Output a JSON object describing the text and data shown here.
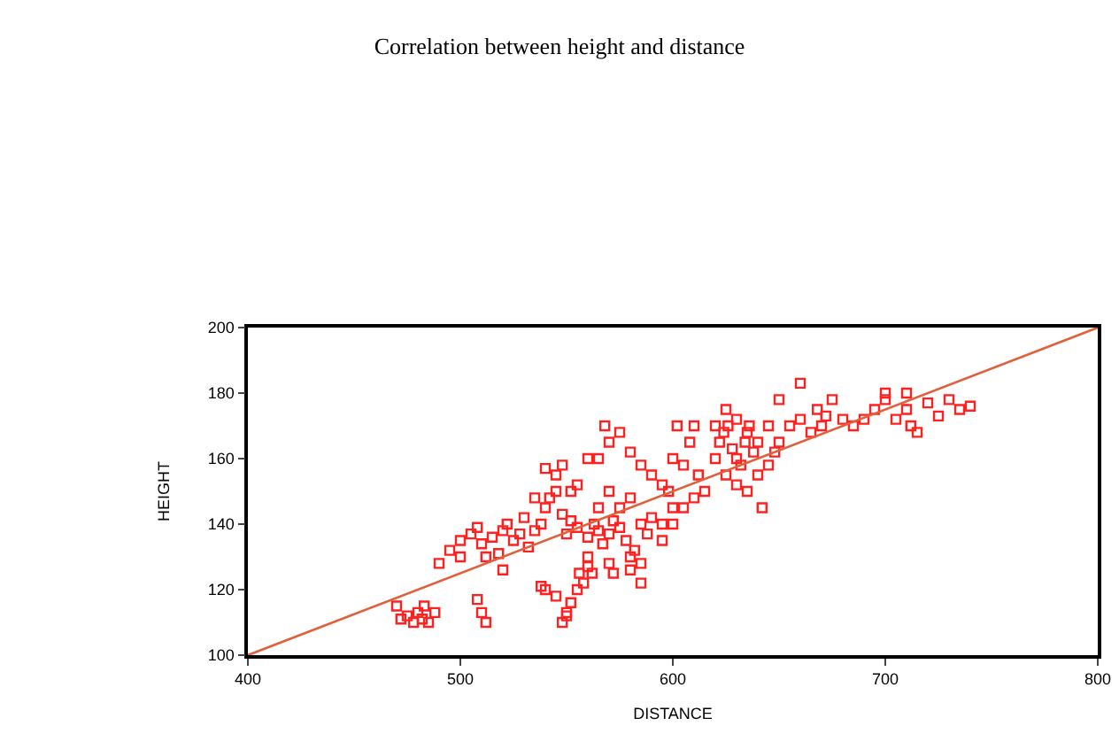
{
  "chart_data": {
    "type": "scatter",
    "title": "Correlation between height and distance",
    "xlabel": "DISTANCE",
    "ylabel": "HEIGHT",
    "xlim": [
      400,
      800
    ],
    "ylim": [
      100,
      200
    ],
    "xticks": [
      400,
      500,
      600,
      700,
      800
    ],
    "yticks": [
      100,
      120,
      140,
      160,
      180,
      200
    ],
    "grid": false,
    "marker": "square",
    "series": [
      {
        "color": "#ff2020",
        "x": [
          470,
          475,
          478,
          480,
          482,
          485,
          483,
          488,
          472,
          510,
          512,
          508,
          548,
          550,
          545,
          552,
          555,
          558,
          556,
          540,
          538,
          560,
          562,
          550,
          560,
          570,
          572,
          580,
          585,
          585,
          490,
          495,
          500,
          505,
          508,
          510,
          515,
          520,
          522,
          518,
          525,
          528,
          530,
          532,
          535,
          538,
          540,
          542,
          545,
          548,
          550,
          552,
          555,
          500,
          512,
          520,
          545,
          548,
          555,
          560,
          535,
          552,
          540,
          560,
          563,
          565,
          567,
          570,
          572,
          575,
          578,
          580,
          582,
          585,
          588,
          575,
          570,
          565,
          580,
          590,
          595,
          600,
          565,
          570,
          575,
          568,
          580,
          585,
          590,
          595,
          598,
          600,
          605,
          608,
          610,
          602,
          612,
          615,
          610,
          605,
          600,
          595,
          620,
          622,
          624,
          626,
          628,
          630,
          632,
          634,
          636,
          638,
          620,
          625,
          630,
          635,
          640,
          625,
          630,
          635,
          640,
          645,
          648,
          650,
          645,
          642,
          655,
          660,
          665,
          668,
          670,
          672,
          660,
          675,
          680,
          685,
          690,
          695,
          700,
          705,
          710,
          712,
          715,
          720,
          725,
          730,
          735,
          740,
          710,
          700,
          650
        ],
        "values": [
          115,
          112,
          110,
          113,
          111,
          110,
          115,
          113,
          111,
          113,
          110,
          117,
          110,
          113,
          118,
          116,
          120,
          122,
          125,
          120,
          121,
          127,
          125,
          112,
          130,
          128,
          125,
          126,
          128,
          122,
          128,
          132,
          135,
          137,
          139,
          134,
          136,
          138,
          140,
          131,
          135,
          137,
          142,
          133,
          138,
          140,
          145,
          148,
          150,
          143,
          137,
          141,
          139,
          130,
          130,
          126,
          155,
          158,
          152,
          160,
          148,
          150,
          157,
          136,
          140,
          138,
          134,
          137,
          141,
          139,
          135,
          130,
          132,
          140,
          137,
          145,
          150,
          145,
          148,
          142,
          140,
          145,
          160,
          165,
          168,
          170,
          162,
          158,
          155,
          152,
          150,
          160,
          158,
          165,
          170,
          170,
          155,
          150,
          148,
          145,
          140,
          135,
          160,
          165,
          168,
          170,
          163,
          160,
          158,
          165,
          170,
          162,
          170,
          175,
          172,
          168,
          165,
          155,
          152,
          150,
          155,
          158,
          162,
          165,
          170,
          145,
          170,
          172,
          168,
          175,
          170,
          173,
          183,
          178,
          172,
          170,
          172,
          175,
          178,
          172,
          175,
          170,
          168,
          177,
          173,
          178,
          175,
          176,
          180,
          180,
          178
        ]
      },
      {
        "type": "line",
        "color": "#e0603c",
        "line_style": "solid",
        "marker": "none",
        "x": [
          400,
          800
        ],
        "values": [
          100,
          200
        ]
      }
    ]
  }
}
